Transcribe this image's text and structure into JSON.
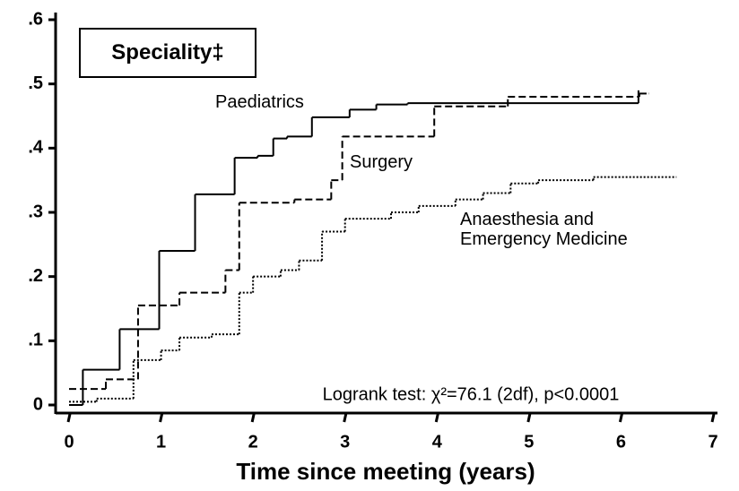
{
  "chart_data": {
    "type": "line",
    "title": "Speciality‡",
    "x_label": "Time since meeting (years)",
    "annotation": "Logrank test: χ²=76.1 (2df), p<0.0001",
    "xlim": [
      0,
      7
    ],
    "xticks": [
      0,
      1,
      2,
      3,
      4,
      5,
      6,
      7
    ],
    "ylim": [
      0,
      0.6
    ],
    "yticks": [
      0,
      {
        "value": 0.1,
        "label": ".1"
      },
      {
        "value": 0.2,
        "label": ".2"
      },
      {
        "value": 0.3,
        "label": ".3"
      },
      {
        "value": 0.4,
        "label": ".4"
      },
      {
        "value": 0.5,
        "label": ".5"
      },
      {
        "value": 0.6,
        "label": ".6"
      }
    ],
    "step": true,
    "series": [
      {
        "name": "Paediatrics",
        "color": "#000000",
        "dash": "solid",
        "x": [
          0,
          0.15,
          0.55,
          0.98,
          1.37,
          1.8,
          2.05,
          2.22,
          2.37,
          2.64,
          3.05,
          3.34,
          3.68,
          6.19
        ],
        "values": [
          0,
          0.055,
          0.118,
          0.24,
          0.328,
          0.385,
          0.388,
          0.415,
          0.418,
          0.448,
          0.46,
          0.468,
          0.47,
          0.49
        ]
      },
      {
        "name": "Surgery",
        "color": "#000000",
        "dash": "dashed",
        "x": [
          0,
          0.4,
          0.75,
          1.2,
          1.7,
          1.85,
          2.45,
          2.85,
          2.97,
          3.97,
          4.77,
          6.2,
          6.3
        ],
        "values": [
          0.025,
          0.04,
          0.155,
          0.175,
          0.21,
          0.315,
          0.32,
          0.35,
          0.418,
          0.465,
          0.48,
          0.485,
          0.485
        ]
      },
      {
        "name": "Anaesthesia and\nEmergency Medicine",
        "color": "#000000",
        "dash": "dotted",
        "x": [
          0,
          0.3,
          0.7,
          1.0,
          1.2,
          1.55,
          1.85,
          2.0,
          2.3,
          2.5,
          2.75,
          3.0,
          3.5,
          3.8,
          4.2,
          4.5,
          4.8,
          5.1,
          5.7,
          6.6
        ],
        "values": [
          0.005,
          0.01,
          0.07,
          0.085,
          0.105,
          0.11,
          0.175,
          0.2,
          0.21,
          0.225,
          0.27,
          0.29,
          0.3,
          0.31,
          0.32,
          0.33,
          0.345,
          0.35,
          0.355,
          0.355
        ]
      }
    ]
  }
}
